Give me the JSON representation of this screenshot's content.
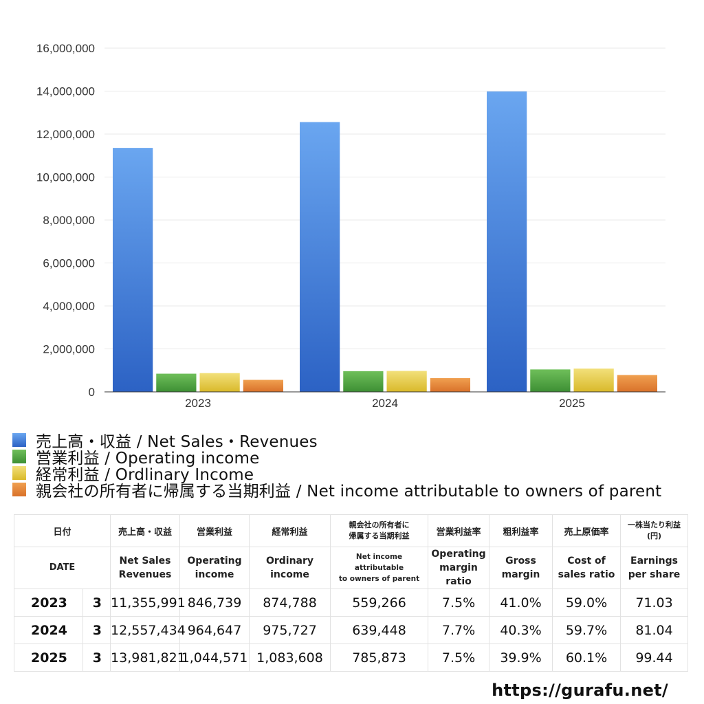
{
  "chart_data": {
    "type": "bar",
    "categories": [
      "2023",
      "2024",
      "2025"
    ],
    "ylim": [
      0,
      16000000
    ],
    "yticks": [
      0,
      2000000,
      4000000,
      6000000,
      8000000,
      10000000,
      12000000,
      14000000,
      16000000
    ],
    "ytick_labels": [
      "0",
      "2,000,000",
      "4,000,000",
      "6,000,000",
      "8,000,000",
      "10,000,000",
      "12,000,000",
      "14,000,000",
      "16,000,000"
    ],
    "grid": true,
    "legend_position": "bottom",
    "series": [
      {
        "name": "売上高・収益 / Net Sales・Revenues",
        "values": [
          11355991,
          12557434,
          13981821
        ],
        "color_top": "#6aa6f0",
        "color_bottom": "#2c62c4"
      },
      {
        "name": "営業利益 / Operating income",
        "values": [
          846739,
          964647,
          1044571
        ],
        "color_top": "#6fbf5a",
        "color_bottom": "#3d8f34"
      },
      {
        "name": "経常利益 / Ordlinary Income",
        "values": [
          874788,
          975727,
          1083608
        ],
        "color_top": "#f2e07a",
        "color_bottom": "#d9b92a"
      },
      {
        "name": "親会社の所有者に帰属する当期利益 / Net income attributable to owners of parent",
        "values": [
          559266,
          639448,
          785873
        ],
        "color_top": "#f0a050",
        "color_bottom": "#d9712a"
      }
    ]
  },
  "table": {
    "header_ja": {
      "date": "日付",
      "sales": "売上高・収益",
      "operating": "営業利益",
      "ordinary": "経常利益",
      "net_line1": "親会社の所有者に",
      "net_line2": "帰属する当期利益",
      "op_margin": "営業利益率",
      "gross_margin": "粗利益率",
      "cost_ratio": "売上原価率",
      "eps_line1": "一株当たり利益",
      "eps_line2": "(円)"
    },
    "header_en": {
      "date": "DATE",
      "sales_line1": "Net Sales",
      "sales_line2": "Revenues",
      "operating_line1": "Operating",
      "operating_line2": "income",
      "ordinary_line1": "Ordinary",
      "ordinary_line2": "income",
      "net_line1": "Net income attributable",
      "net_line2": "to owners of parent",
      "op_margin_line1": "Operating",
      "op_margin_line2": "margin",
      "op_margin_line3": "ratio",
      "gross_line1": "Gross",
      "gross_line2": "margin",
      "cost_line1": "Cost of",
      "cost_line2": "sales ratio",
      "eps_line1": "Earnings",
      "eps_line2": "per share"
    },
    "rows": [
      {
        "year": "2023",
        "month": "3",
        "sales": "11,355,991",
        "operating": "846,739",
        "ordinary": "874,788",
        "net": "559,266",
        "op_margin": "7.5%",
        "gross_margin": "41.0%",
        "cost_ratio": "59.0%",
        "eps": "71.03"
      },
      {
        "year": "2024",
        "month": "3",
        "sales": "12,557,434",
        "operating": "964,647",
        "ordinary": "975,727",
        "net": "639,448",
        "op_margin": "7.7%",
        "gross_margin": "40.3%",
        "cost_ratio": "59.7%",
        "eps": "81.04"
      },
      {
        "year": "2025",
        "month": "3",
        "sales": "13,981,821",
        "operating": "1,044,571",
        "ordinary": "1,083,608",
        "net": "785,873",
        "op_margin": "7.5%",
        "gross_margin": "39.9%",
        "cost_ratio": "60.1%",
        "eps": "99.44"
      }
    ]
  },
  "watermark": "https://gurafu.net/"
}
